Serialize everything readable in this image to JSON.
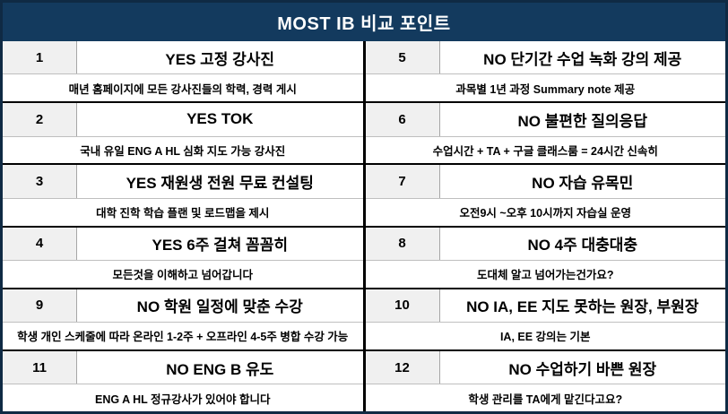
{
  "header": {
    "title": "MOST IB 비교 포인트"
  },
  "colors": {
    "header_bg": "#133A5E",
    "header_text": "#FFFFFF",
    "outer_border": "#0F2A44",
    "border_dark": "#000000",
    "border_light": "#BFBFBF",
    "number_cell_bg": "#F0F0F0",
    "number_cell_border": "#A6A6A6"
  },
  "columns": [
    {
      "items": [
        {
          "num": "1",
          "title": "YES 고정 강사진",
          "desc": "매년 홈페이지에 모든 강사진들의 학력, 경력 게시"
        },
        {
          "num": "2",
          "title": "YES TOK",
          "desc": "국내 유일 ENG A HL 심화 지도 가능 강사진"
        },
        {
          "num": "3",
          "title": "YES 재원생 전원 무료 컨설팅",
          "desc": "대학 진학 학습 플랜 및 로드맵을 제시"
        },
        {
          "num": "4",
          "title": "YES 6주 걸쳐 꼼꼼히",
          "desc": "모든것을 이해하고 넘어갑니다"
        },
        {
          "num": "9",
          "title": "NO 학원 일정에 맞춘 수강",
          "desc": "학생 개인 스케줄에 따라 온라인 1-2주 + 오프라인 4-5주 병합 수강 가능"
        },
        {
          "num": "11",
          "title": "NO ENG B 유도",
          "desc": "ENG A HL 정규강사가 있어야 합니다"
        }
      ]
    },
    {
      "items": [
        {
          "num": "5",
          "title": "NO 단기간 수업 녹화 강의 제공",
          "desc": "과목별 1년 과정 Summary note 제공"
        },
        {
          "num": "6",
          "title": "NO 불편한 질의응답",
          "desc": "수업시간 + TA + 구글 클래스룸 = 24시간 신속히"
        },
        {
          "num": "7",
          "title": "NO 자습 유목민",
          "desc": "오전9시 ~오후 10시까지 자습실 운영"
        },
        {
          "num": "8",
          "title": "NO 4주 대충대충",
          "desc": "도대체 알고 넘어가는건가요?"
        },
        {
          "num": "10",
          "title": "NO IA, EE 지도 못하는 원장, 부원장",
          "desc": "IA, EE 강의는 기본"
        },
        {
          "num": "12",
          "title": "NO 수업하기 바쁜 원장",
          "desc": "학생 관리를 TA에게 맡긴다고요?"
        }
      ]
    }
  ]
}
